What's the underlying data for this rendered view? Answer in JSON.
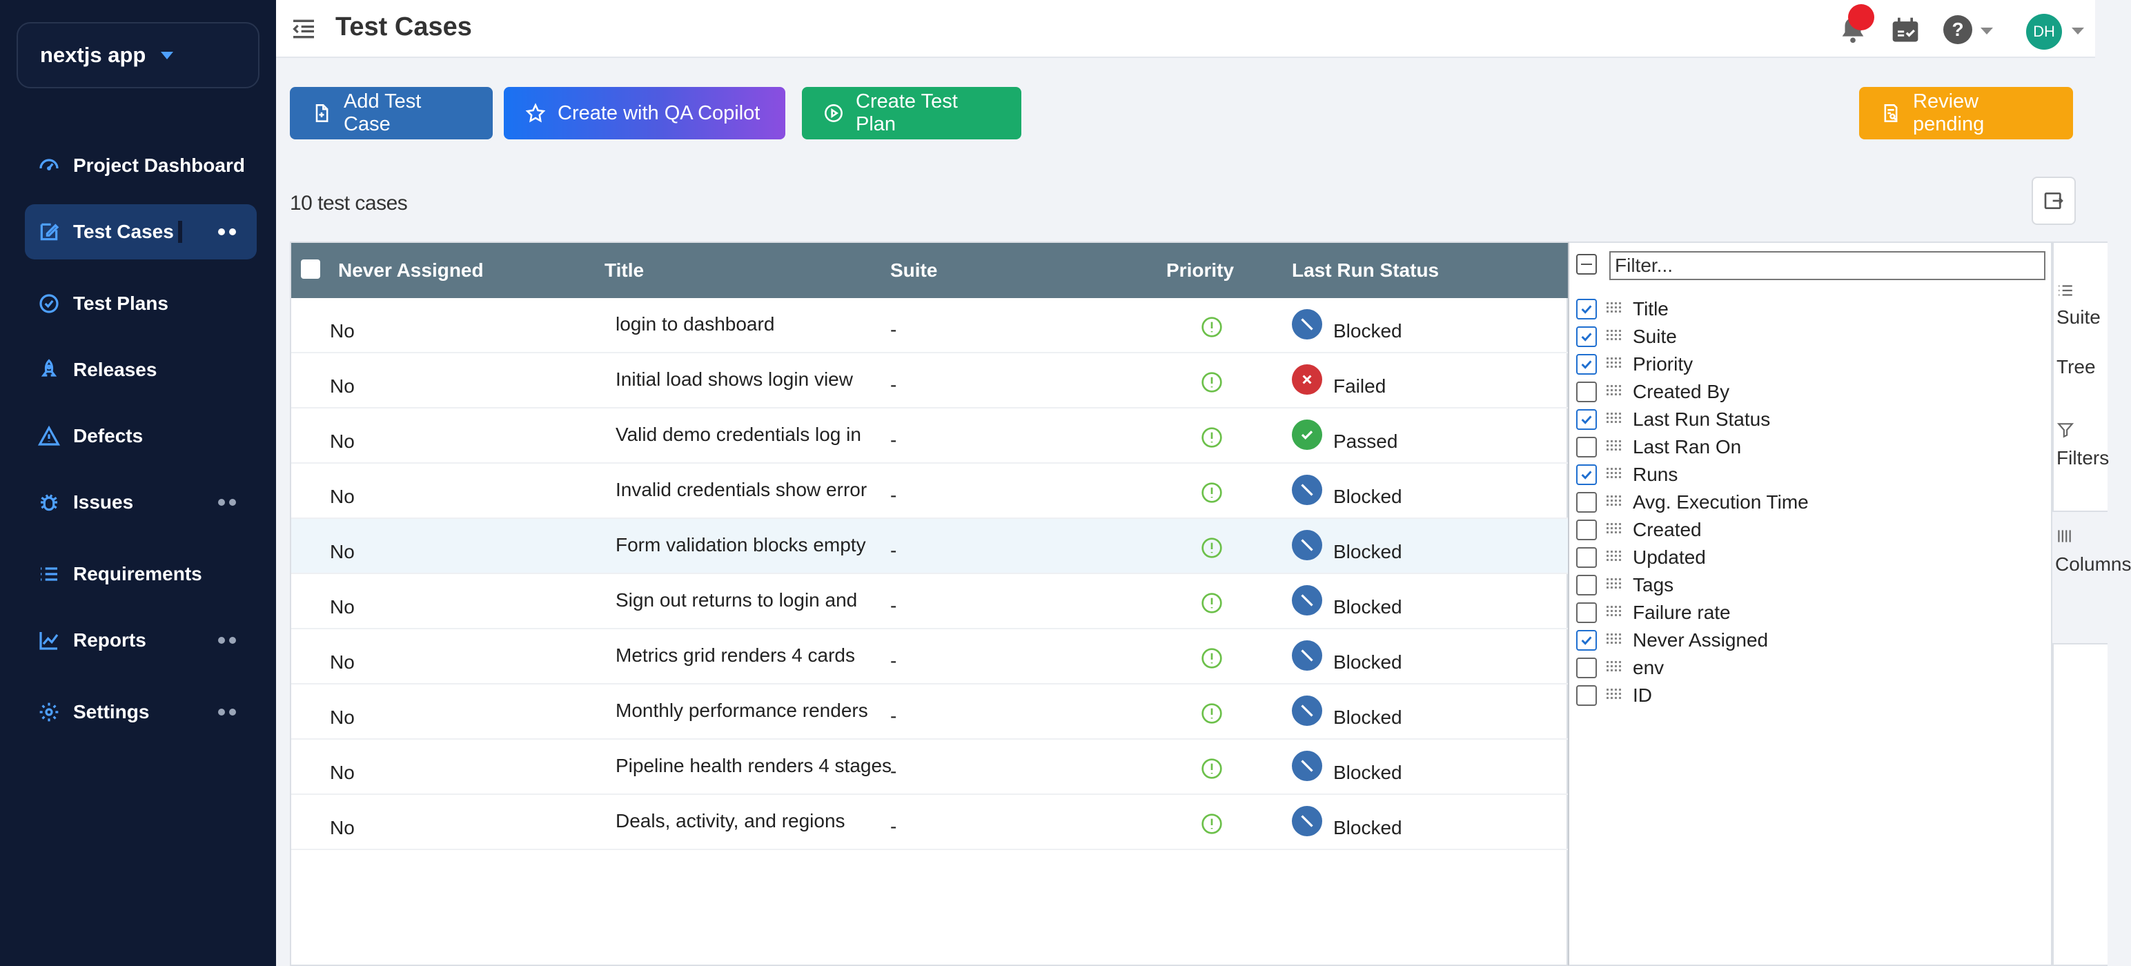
{
  "sidebar": {
    "project_name": "nextjs app",
    "items": [
      {
        "label": "Project Dashboard",
        "icon": "dashboard-icon"
      },
      {
        "label": "Test Cases",
        "icon": "edit-icon",
        "active": true
      },
      {
        "label": "Test Plans",
        "icon": "check-circle-icon"
      },
      {
        "label": "Releases",
        "icon": "rocket-icon"
      },
      {
        "label": "Defects",
        "icon": "warning-icon"
      },
      {
        "label": "Issues",
        "icon": "bug-icon"
      },
      {
        "label": "Requirements",
        "icon": "list-icon"
      },
      {
        "label": "Reports",
        "icon": "chart-icon"
      },
      {
        "label": "Settings",
        "icon": "gear-icon"
      }
    ]
  },
  "header": {
    "title": "Test Cases",
    "avatar_initials": "DH",
    "help_label": "?"
  },
  "actions": {
    "add_test_case": "Add Test Case",
    "create_copilot": "Create with QA Copilot",
    "create_plan": "Create Test Plan",
    "review_pending": "Review pending"
  },
  "summary": {
    "count_label": "10 test cases"
  },
  "grid": {
    "columns": {
      "never_assigned": "Never Assigned",
      "title": "Title",
      "suite": "Suite",
      "priority": "Priority",
      "last_run_status": "Last Run Status"
    },
    "rows": [
      {
        "never": "No",
        "title": "login to dashboard",
        "suite": "-",
        "status": "Blocked"
      },
      {
        "never": "No",
        "title": "Initial load shows login view",
        "suite": "-",
        "status": "Failed"
      },
      {
        "never": "No",
        "title": "Valid demo credentials log in",
        "suite": "-",
        "status": "Passed"
      },
      {
        "never": "No",
        "title": "Invalid credentials show error",
        "suite": "-",
        "status": "Blocked"
      },
      {
        "never": "No",
        "title": "Form validation blocks empty",
        "suite": "-",
        "status": "Blocked"
      },
      {
        "never": "No",
        "title": "Sign out returns to login and",
        "suite": "-",
        "status": "Blocked"
      },
      {
        "never": "No",
        "title": "Metrics grid renders 4 cards",
        "suite": "-",
        "status": "Blocked"
      },
      {
        "never": "No",
        "title": "Monthly performance renders",
        "suite": "-",
        "status": "Blocked"
      },
      {
        "never": "No",
        "title": "Pipeline health renders 4 stages",
        "suite": "-",
        "status": "Blocked"
      },
      {
        "never": "No",
        "title": "Deals, activity, and regions",
        "suite": "-",
        "status": "Blocked"
      }
    ]
  },
  "column_panel": {
    "filter_placeholder": "Filter...",
    "columns": [
      {
        "label": "Title",
        "checked": true
      },
      {
        "label": "Suite",
        "checked": true
      },
      {
        "label": "Priority",
        "checked": true
      },
      {
        "label": "Created By",
        "checked": false
      },
      {
        "label": "Last Run Status",
        "checked": true
      },
      {
        "label": "Last Ran On",
        "checked": false
      },
      {
        "label": "Runs",
        "checked": true
      },
      {
        "label": "Avg. Execution Time",
        "checked": false
      },
      {
        "label": "Created",
        "checked": false
      },
      {
        "label": "Updated",
        "checked": false
      },
      {
        "label": "Tags",
        "checked": false
      },
      {
        "label": "Failure rate",
        "checked": false
      },
      {
        "label": "Never Assigned",
        "checked": true
      },
      {
        "label": "env",
        "checked": false
      },
      {
        "label": "ID",
        "checked": false
      }
    ]
  },
  "side_tools": {
    "suite_label": "Suite",
    "tree_label": "Tree",
    "filter_label": "Filters",
    "columns_label": "Columns"
  },
  "colors": {
    "sidebar_bg": "#0f1a33",
    "accent_blue": "#4ea0ff",
    "blocked": "#3a6fb0",
    "failed": "#d13438",
    "passed": "#3aaa4e",
    "priority": "#6cc04a"
  }
}
